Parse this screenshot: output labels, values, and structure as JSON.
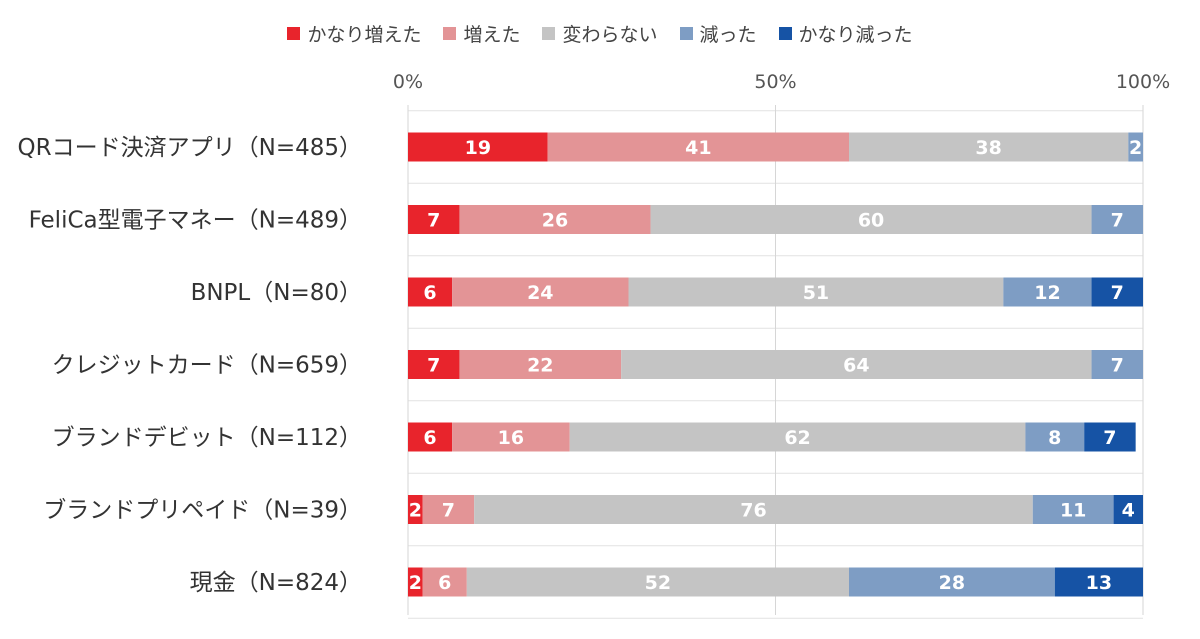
{
  "chart_data": {
    "type": "bar",
    "orientation": "horizontal",
    "stacked": true,
    "normalized": "percent",
    "categories": [
      "QRコード決済アプリ（N=485）",
      "FeliCa型電子マネー（N=489）",
      "BNPL（N=80）",
      "クレジットカード（N=659）",
      "ブランドデビット（N=112）",
      "ブランドプリペイド（N=39）",
      "現金（N=824）"
    ],
    "series": [
      {
        "name": "かなり増えた",
        "color": "#e8242c",
        "values": [
          19,
          7,
          6,
          7,
          6,
          2,
          2
        ]
      },
      {
        "name": "増えた",
        "color": "#e39496",
        "values": [
          41,
          26,
          24,
          22,
          16,
          7,
          6
        ]
      },
      {
        "name": "変わらない",
        "color": "#c4c4c4",
        "values": [
          38,
          60,
          51,
          64,
          62,
          76,
          52
        ]
      },
      {
        "name": "減った",
        "color": "#7e9dc4",
        "values": [
          2,
          7,
          12,
          7,
          8,
          11,
          28
        ]
      },
      {
        "name": "かなり減った",
        "color": "#1653a5",
        "values": [
          1,
          0,
          7,
          1,
          7,
          4,
          13
        ]
      }
    ],
    "xlim": [
      0,
      100
    ],
    "xticks": [
      "0%",
      "50%",
      "100%"
    ],
    "legend_position": "top",
    "grid": true
  }
}
